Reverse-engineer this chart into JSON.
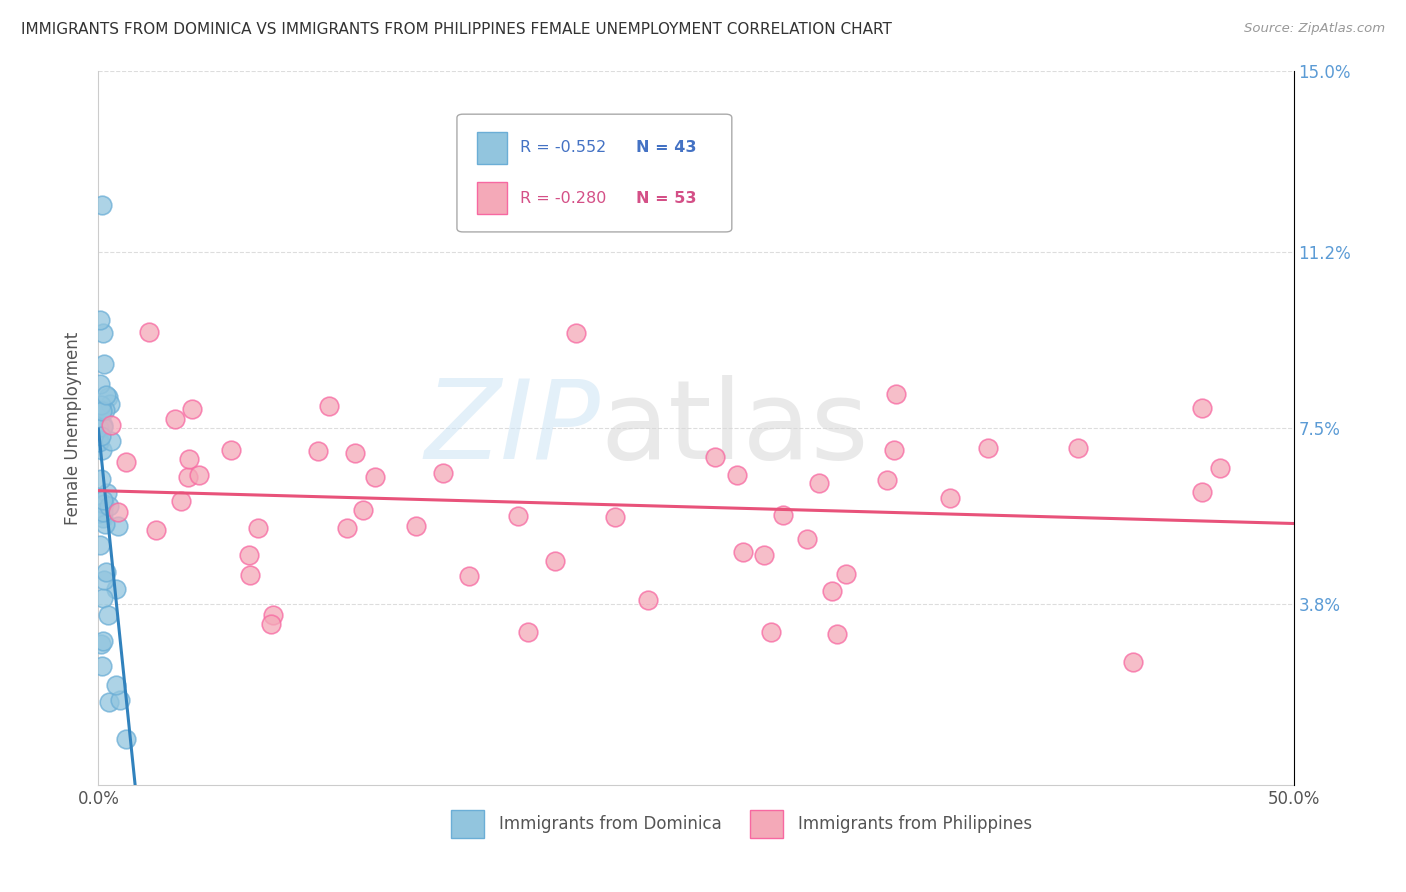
{
  "title": "IMMIGRANTS FROM DOMINICA VS IMMIGRANTS FROM PHILIPPINES FEMALE UNEMPLOYMENT CORRELATION CHART",
  "source": "Source: ZipAtlas.com",
  "ylabel": "Female Unemployment",
  "xlim": [
    0.0,
    0.5
  ],
  "ylim": [
    0.0,
    0.15
  ],
  "ytick_labels": [
    "3.8%",
    "7.5%",
    "11.2%",
    "15.0%"
  ],
  "ytick_positions": [
    0.038,
    0.075,
    0.112,
    0.15
  ],
  "dominica_color": "#92c5de",
  "dominica_edge_color": "#6baed6",
  "philippines_color": "#f4a9b8",
  "philippines_edge_color": "#f768a1",
  "dominica_line_color": "#3182bd",
  "philippines_line_color": "#e8527a",
  "legend_r1": "R = -0.552",
  "legend_n1": "N = 43",
  "legend_r2": "R = -0.280",
  "legend_n2": "N = 53",
  "label_dominica": "Immigrants from Dominica",
  "label_philippines": "Immigrants from Philippines",
  "watermark_zip": "ZIP",
  "watermark_atlas": "atlas",
  "background_color": "#ffffff",
  "grid_color": "#dddddd",
  "tick_label_color": "#5b9bd5",
  "axis_label_color": "#555555",
  "title_color": "#333333",
  "source_color": "#999999"
}
